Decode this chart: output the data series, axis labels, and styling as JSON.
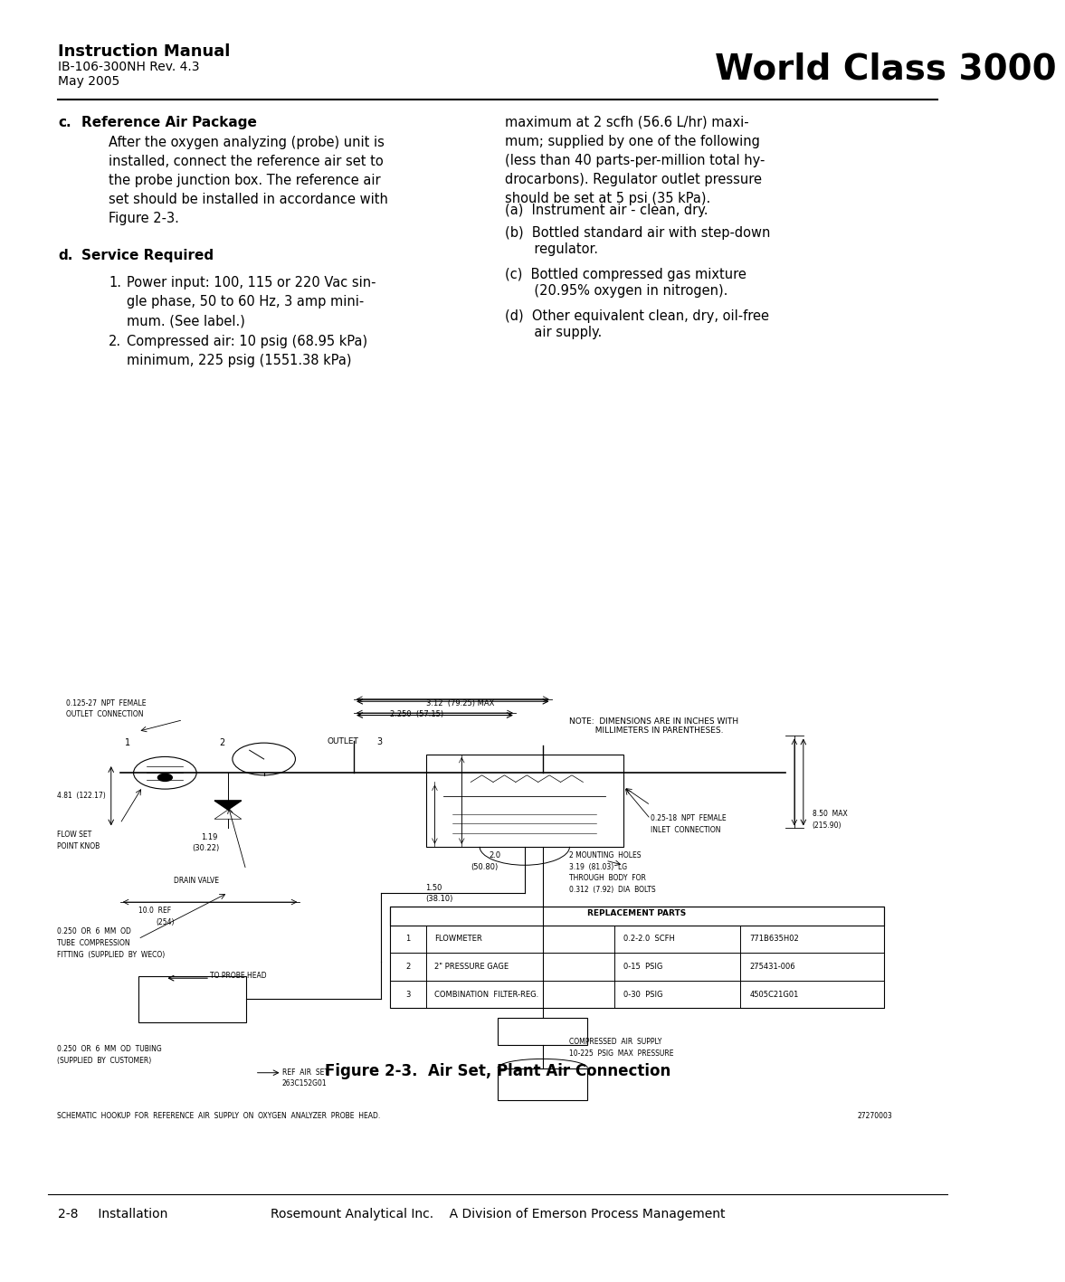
{
  "bg_color": "#ffffff",
  "title_left_bold": "Instruction Manual",
  "title_left_line2": "IB-106-300NH Rev. 4.3",
  "title_left_line3": "May 2005",
  "title_right": "World Class 3000",
  "section_c_letter": "c.",
  "section_c_title": "Reference Air Package",
  "section_c_body": "After the oxygen analyzing (probe) unit is\ninstalled, connect the reference air set to\nthe probe junction box. The reference air\nset should be installed in accordance with\nFigure 2-3.",
  "section_d_letter": "d.",
  "section_d_title": "Service Required",
  "item1_num": "1.",
  "item1_text": "Power input: 100, 115 or 220 Vac sin-\ngle phase, 50 to 60 Hz, 3 amp mini-\nmum. (See label.)",
  "item2_num": "2.",
  "item2_text": "Compressed air: 10 psig (68.95 kPa)\nminimum, 225 psig (1551.38 kPa)",
  "right_col_text": "maximum at 2 scfh (56.6 L/hr) maxi-\nmum; supplied by one of the following\n(less than 40 parts-per-million total hy-\ndrocarbons). Regulator outlet pressure\nshould be set at 5 psi (35 kPa).",
  "item_a": "(a)  Instrument air - clean, dry.",
  "item_b_line1": "(b)  Bottled standard air with step-down",
  "item_b_line2": "       regulator.",
  "item_c_line1": "(c)  Bottled compressed gas mixture",
  "item_c_line2": "       (20.95% oxygen in nitrogen).",
  "item_d_line1": "(d)  Other equivalent clean, dry, oil-free",
  "item_d_line2": "       air supply.",
  "fig_caption": "Figure 2-3.  Air Set, Plant Air Connection",
  "footer_left": "2-8     Installation",
  "footer_right": "Rosemount Analytical Inc.    A Division of Emerson Process Management",
  "note_text": "NOTE:  DIMENSIONS ARE IN INCHES WITH\n          MILLIMETERS IN PARENTHESES.",
  "schematic_caption": "SCHEMATIC  HOOKUP  FOR  REFERENCE  AIR  SUPPLY  ON  OXYGEN  ANALYZER  PROBE  HEAD.",
  "schematic_num": "27270003",
  "table_title": "REPLACEMENT PARTS",
  "table_rows": [
    [
      "1",
      "FLOWMETER",
      "0.2-2.0  SCFH",
      "771B635H02"
    ],
    [
      "2",
      "2\" PRESSURE GAGE",
      "0-15  PSIG",
      "275431-006"
    ],
    [
      "3",
      "COMBINATION  FILTER-REG.",
      "0-30  PSIG",
      "4505C21G01"
    ]
  ]
}
